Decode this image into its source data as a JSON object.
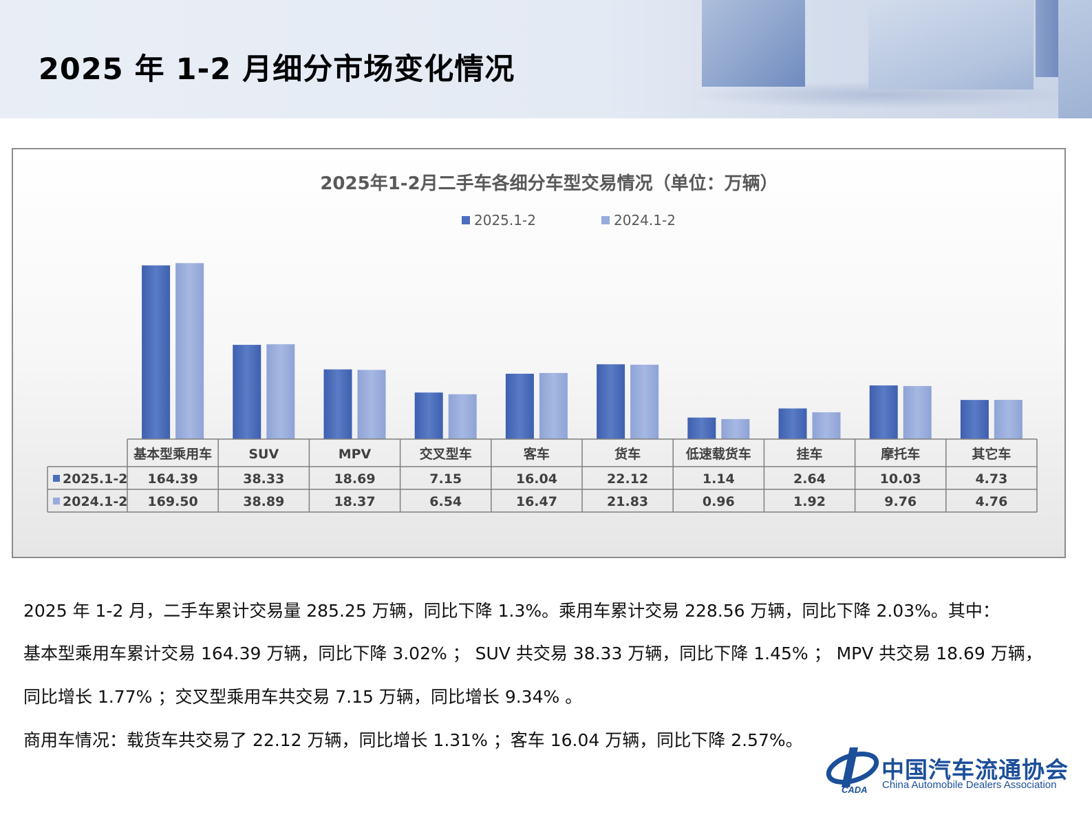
{
  "header": {
    "title": "2025 年 1-2 月细分市场变化情况"
  },
  "colors": {
    "series_2025": "#4a6fbd",
    "series_2024": "#97acdc",
    "logo": "#1c4f9a"
  },
  "chart_data": {
    "type": "bar",
    "title": "2025年1-2月二手车各细分车型交易情况（单位：万辆）",
    "categories": [
      "基本型乘用车",
      "SUV",
      "MPV",
      "交叉型车",
      "客车",
      "货车",
      "低速载货车",
      "挂车",
      "摩托车",
      "其它车"
    ],
    "series": [
      {
        "name": "2025.1-2",
        "values": [
          164.39,
          38.33,
          18.69,
          7.15,
          16.04,
          22.12,
          1.14,
          2.64,
          10.03,
          4.73
        ]
      },
      {
        "name": "2024.1-2",
        "values": [
          169.5,
          38.89,
          18.37,
          6.54,
          16.47,
          21.83,
          0.96,
          1.92,
          9.76,
          4.76
        ]
      }
    ],
    "value_labels": [
      [
        "164.39",
        "38.33",
        "18.69",
        "7.15",
        "16.04",
        "22.12",
        "1.14",
        "2.64",
        "10.03",
        "4.73"
      ],
      [
        "169.50",
        "38.89",
        "18.37",
        "6.54",
        "16.47",
        "21.83",
        "0.96",
        "1.92",
        "9.76",
        "4.76"
      ]
    ],
    "legend_position": "top-center",
    "grid": false,
    "data_table": true
  },
  "paragraphs": [
    "2025 年 1-2 月，二手车累计交易量 285.25 万辆，同比下降 1.3%。乘用车累计交易 228.56 万辆，同比下降 2.03%。其中：",
    "基本型乘用车累计交易 164.39 万辆，同比下降 3.02% ； SUV 共交易 38.33 万辆，同比下降 1.45% ； MPV 共交易 18.69 万辆，",
    "同比增长 1.77% ；交叉型乘用车共交易 7.15 万辆，同比增长 9.34% 。",
    "商用车情况：载货车共交易了 22.12 万辆，同比增长 1.31% ；客车 16.04 万辆，同比下降 2.57%。"
  ],
  "logo": {
    "name_cn": "中国汽车流通协会",
    "name_en": "China Automobile Dealers Association",
    "abbr": "CADA",
    "icon": "cada-logo-icon"
  }
}
